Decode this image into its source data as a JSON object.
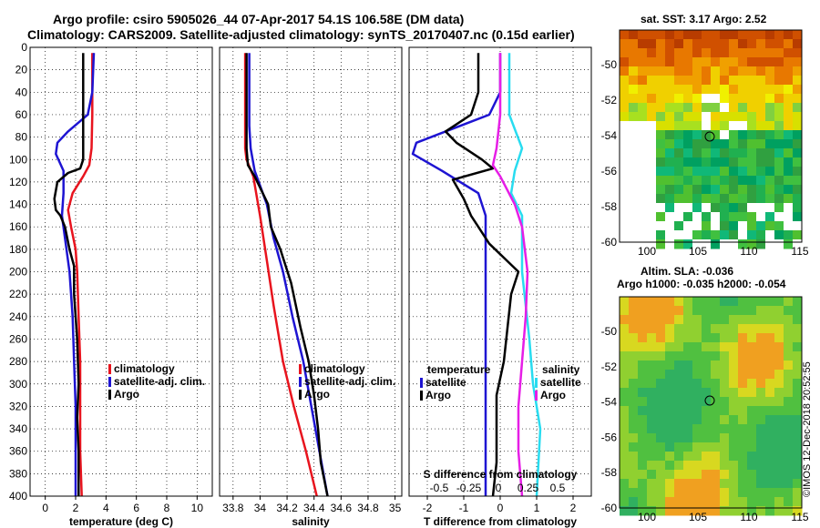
{
  "title_line1": "Argo profile: csiro 5905026_44 07-Apr-2017 54.1S 106.58E (DM data)",
  "title_line2": "Climatology: CARS2009. Satellite-adjusted climatology: synTS_20170407.nc (0.15d earlier)",
  "colors": {
    "climatology": "#e8141e",
    "satellite": "#1e14d2",
    "argo": "#000000",
    "magenta": "#e61ee6",
    "cyan": "#28dcf0"
  },
  "chart_data": [
    {
      "id": "temperature",
      "type": "line",
      "xlabel": "temperature (deg C)",
      "xlim": [
        -1,
        11
      ],
      "xticks": [
        0,
        2,
        4,
        6,
        8,
        10
      ],
      "ylim": [
        0,
        400
      ],
      "yticks": [
        0,
        20,
        40,
        60,
        80,
        100,
        120,
        140,
        160,
        180,
        200,
        220,
        240,
        260,
        280,
        300,
        320,
        340,
        360,
        380,
        400
      ],
      "legend": [
        "climatology",
        "satellite-adj. clim.",
        "Argo"
      ],
      "series": [
        {
          "name": "climatology",
          "color": "#e8141e",
          "points": [
            [
              3.1,
              5
            ],
            [
              3.1,
              60
            ],
            [
              3.05,
              90
            ],
            [
              2.9,
              105
            ],
            [
              2.5,
              115
            ],
            [
              1.8,
              130
            ],
            [
              1.5,
              145
            ],
            [
              1.7,
              160
            ],
            [
              2.0,
              180
            ],
            [
              2.1,
              200
            ],
            [
              2.2,
              240
            ],
            [
              2.3,
              280
            ],
            [
              2.3,
              320
            ],
            [
              2.3,
              360
            ],
            [
              2.4,
              400
            ]
          ]
        },
        {
          "name": "satellite-adj. clim.",
          "color": "#1e14d2",
          "points": [
            [
              3.2,
              5
            ],
            [
              3.1,
              40
            ],
            [
              2.8,
              60
            ],
            [
              1.5,
              75
            ],
            [
              0.8,
              85
            ],
            [
              0.7,
              95
            ],
            [
              1.2,
              110
            ],
            [
              1.2,
              130
            ],
            [
              1.1,
              150
            ],
            [
              1.3,
              170
            ],
            [
              1.6,
              200
            ],
            [
              1.8,
              240
            ],
            [
              1.9,
              280
            ],
            [
              2.0,
              320
            ],
            [
              2.0,
              360
            ],
            [
              2.0,
              400
            ]
          ]
        },
        {
          "name": "Argo",
          "color": "#000000",
          "points": [
            [
              2.5,
              5
            ],
            [
              2.5,
              30
            ],
            [
              2.5,
              60
            ],
            [
              2.5,
              80
            ],
            [
              2.5,
              100
            ],
            [
              2.3,
              108
            ],
            [
              1.5,
              112
            ],
            [
              0.8,
              120
            ],
            [
              0.6,
              135
            ],
            [
              0.7,
              145
            ],
            [
              1.0,
              150
            ],
            [
              1.3,
              160
            ],
            [
              1.6,
              180
            ],
            [
              1.9,
              195
            ],
            [
              1.9,
              220
            ],
            [
              2.1,
              260
            ],
            [
              2.2,
              300
            ],
            [
              2.1,
              330
            ],
            [
              2.2,
              360
            ],
            [
              2.2,
              400
            ]
          ]
        }
      ]
    },
    {
      "id": "salinity",
      "type": "line",
      "xlabel": "salinity",
      "xlim": [
        33.7,
        35.05
      ],
      "xticks": [
        33.8,
        34,
        34.2,
        34.4,
        34.6,
        34.8,
        35
      ],
      "xtick_labels": [
        "33.8",
        "34",
        "34.2",
        "34.4",
        "34.6",
        "34.8",
        "35"
      ],
      "ylim": [
        0,
        400
      ],
      "legend": [
        "climatology",
        "satellite-adj. clim.",
        "Argo"
      ],
      "series": [
        {
          "name": "climatology",
          "color": "#e8141e",
          "points": [
            [
              33.89,
              5
            ],
            [
              33.89,
              90
            ],
            [
              33.9,
              100
            ],
            [
              33.95,
              115
            ],
            [
              34.0,
              150
            ],
            [
              34.05,
              190
            ],
            [
              34.1,
              230
            ],
            [
              34.17,
              280
            ],
            [
              34.25,
              320
            ],
            [
              34.34,
              360
            ],
            [
              34.42,
              400
            ]
          ]
        },
        {
          "name": "satellite-adj. clim.",
          "color": "#1e14d2",
          "points": [
            [
              33.92,
              5
            ],
            [
              33.92,
              70
            ],
            [
              33.93,
              90
            ],
            [
              33.96,
              110
            ],
            [
              34.05,
              140
            ],
            [
              34.1,
              170
            ],
            [
              34.17,
              200
            ],
            [
              34.24,
              240
            ],
            [
              34.32,
              280
            ],
            [
              34.38,
              320
            ],
            [
              34.44,
              360
            ],
            [
              34.5,
              400
            ]
          ]
        },
        {
          "name": "Argo",
          "color": "#000000",
          "points": [
            [
              33.9,
              5
            ],
            [
              33.9,
              90
            ],
            [
              33.91,
              105
            ],
            [
              33.96,
              115
            ],
            [
              34.06,
              140
            ],
            [
              34.08,
              160
            ],
            [
              34.15,
              180
            ],
            [
              34.23,
              210
            ],
            [
              34.3,
              250
            ],
            [
              34.36,
              280
            ],
            [
              34.4,
              310
            ],
            [
              34.43,
              340
            ],
            [
              34.45,
              370
            ],
            [
              34.5,
              400
            ]
          ]
        }
      ]
    },
    {
      "id": "difference",
      "type": "line",
      "xlabel": "T difference from climatology",
      "toplabel": "S difference from climatology",
      "xlim": [
        -2.5,
        2.5
      ],
      "xticks": [
        -2,
        -1,
        0,
        1,
        2
      ],
      "top_ticks": [
        -0.5,
        -0.25,
        0,
        0.25,
        0.5
      ],
      "top_tick_labels": [
        "-0.5",
        "-0.25",
        "0",
        "0.25",
        "0.5"
      ],
      "ylim": [
        0,
        400
      ],
      "legend_left_title": "temperature",
      "legend_right_title": "salinity",
      "legend_left": [
        "satellite",
        "Argo"
      ],
      "legend_right": [
        "satellite",
        "Argo"
      ],
      "series": [
        {
          "name": "T satellite",
          "color": "#1e14d2",
          "points": [
            [
              0,
              5
            ],
            [
              0,
              40
            ],
            [
              -0.3,
              60
            ],
            [
              -1.5,
              75
            ],
            [
              -2.3,
              85
            ],
            [
              -2.4,
              95
            ],
            [
              -1.6,
              110
            ],
            [
              -0.6,
              130
            ],
            [
              -0.4,
              150
            ],
            [
              -0.4,
              170
            ],
            [
              -0.4,
              200
            ],
            [
              -0.4,
              260
            ],
            [
              -0.4,
              320
            ],
            [
              -0.4,
              400
            ]
          ]
        },
        {
          "name": "T Argo",
          "color": "#000000",
          "points": [
            [
              -0.6,
              5
            ],
            [
              -0.6,
              40
            ],
            [
              -0.8,
              60
            ],
            [
              -1.5,
              75
            ],
            [
              -1.2,
              85
            ],
            [
              -0.5,
              100
            ],
            [
              -0.2,
              108
            ],
            [
              -1.3,
              118
            ],
            [
              -1.0,
              135
            ],
            [
              -0.8,
              150
            ],
            [
              -0.6,
              160
            ],
            [
              -0.3,
              175
            ],
            [
              0.5,
              200
            ],
            [
              0.3,
              220
            ],
            [
              0.2,
              250
            ],
            [
              0.1,
              280
            ],
            [
              -0.1,
              310
            ],
            [
              -0.1,
              340
            ],
            [
              -0.1,
              370
            ],
            [
              -0.2,
              400
            ]
          ]
        },
        {
          "name": "S satellite",
          "color": "#28dcf0",
          "points": [
            [
              0.25,
              5
            ],
            [
              0.25,
              60
            ],
            [
              0.6,
              90
            ],
            [
              0.4,
              110
            ],
            [
              0.3,
              130
            ],
            [
              0.6,
              150
            ],
            [
              0.6,
              200
            ],
            [
              0.7,
              230
            ],
            [
              0.8,
              260
            ],
            [
              0.9,
              300
            ],
            [
              1.1,
              340
            ],
            [
              1.0,
              400
            ]
          ]
        },
        {
          "name": "S Argo",
          "color": "#e61ee6",
          "points": [
            [
              0,
              5
            ],
            [
              0,
              60
            ],
            [
              -0.1,
              90
            ],
            [
              -0.2,
              105
            ],
            [
              0.0,
              115
            ],
            [
              0.4,
              140
            ],
            [
              0.6,
              160
            ],
            [
              0.75,
              200
            ],
            [
              0.7,
              240
            ],
            [
              0.6,
              280
            ],
            [
              0.5,
              320
            ],
            [
              0.5,
              360
            ],
            [
              0.6,
              400
            ]
          ]
        }
      ]
    }
  ],
  "maps": {
    "sst": {
      "title": "sat. SST: 3.17 Argo: 2.52",
      "xticks": [
        "100",
        "105",
        "110",
        "115"
      ],
      "yticks": [
        "-50",
        "-52",
        "-54",
        "-56",
        "-58",
        "-60"
      ]
    },
    "sla": {
      "title1": "Altim. SLA: -0.036",
      "title2": "Argo h1000: -0.035 h2000: -0.054",
      "xticks": [
        "100",
        "105",
        "110",
        "115"
      ],
      "yticks": [
        "-50",
        "-52",
        "-54",
        "-56",
        "-58",
        "-60"
      ]
    }
  },
  "credit": "©IMOS 12-Dec-2018 20:52:55"
}
